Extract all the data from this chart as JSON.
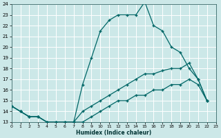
{
  "xlabel": "Humidex (Indice chaleur)",
  "bg_color": "#cce8e8",
  "grid_color": "#ffffff",
  "line_color": "#006666",
  "xlim": [
    0,
    23
  ],
  "ylim": [
    13,
    24
  ],
  "xticks": [
    0,
    1,
    2,
    3,
    4,
    5,
    6,
    7,
    8,
    9,
    10,
    11,
    12,
    13,
    14,
    15,
    16,
    17,
    18,
    19,
    20,
    21,
    22,
    23
  ],
  "yticks": [
    13,
    14,
    15,
    16,
    17,
    18,
    19,
    20,
    21,
    22,
    23,
    24
  ],
  "lines": [
    {
      "x": [
        0,
        1,
        2,
        3,
        4,
        5,
        6,
        7,
        8,
        9,
        10,
        11,
        12,
        13,
        14,
        15,
        16,
        17,
        18,
        19,
        20,
        21,
        22
      ],
      "y": [
        14.5,
        14.0,
        13.5,
        13.5,
        13.0,
        13.0,
        13.0,
        13.0,
        16.5,
        19.0,
        21.5,
        22.5,
        23.0,
        23.0,
        23.0,
        24.2,
        22.0,
        21.5,
        20.0,
        19.5,
        18.0,
        17.0,
        15.0
      ]
    },
    {
      "x": [
        0,
        1,
        2,
        3,
        4,
        5,
        6,
        7,
        8,
        9,
        10,
        11,
        12,
        13,
        14,
        15,
        16,
        17,
        18,
        19,
        20,
        21,
        22
      ],
      "y": [
        14.5,
        14.0,
        13.5,
        13.5,
        13.0,
        13.0,
        13.0,
        13.0,
        14.0,
        14.5,
        15.0,
        15.5,
        16.0,
        16.5,
        17.0,
        17.5,
        17.5,
        17.8,
        18.0,
        18.0,
        18.5,
        17.0,
        15.0
      ]
    },
    {
      "x": [
        0,
        1,
        2,
        3,
        4,
        5,
        6,
        7,
        8,
        9,
        10,
        11,
        12,
        13,
        14,
        15,
        16,
        17,
        18,
        19,
        20,
        21,
        22
      ],
      "y": [
        14.5,
        14.0,
        13.5,
        13.5,
        13.0,
        13.0,
        13.0,
        13.0,
        13.0,
        13.5,
        14.0,
        14.5,
        15.0,
        15.0,
        15.5,
        15.5,
        16.0,
        16.0,
        16.5,
        16.5,
        17.0,
        16.5,
        15.0
      ]
    }
  ]
}
